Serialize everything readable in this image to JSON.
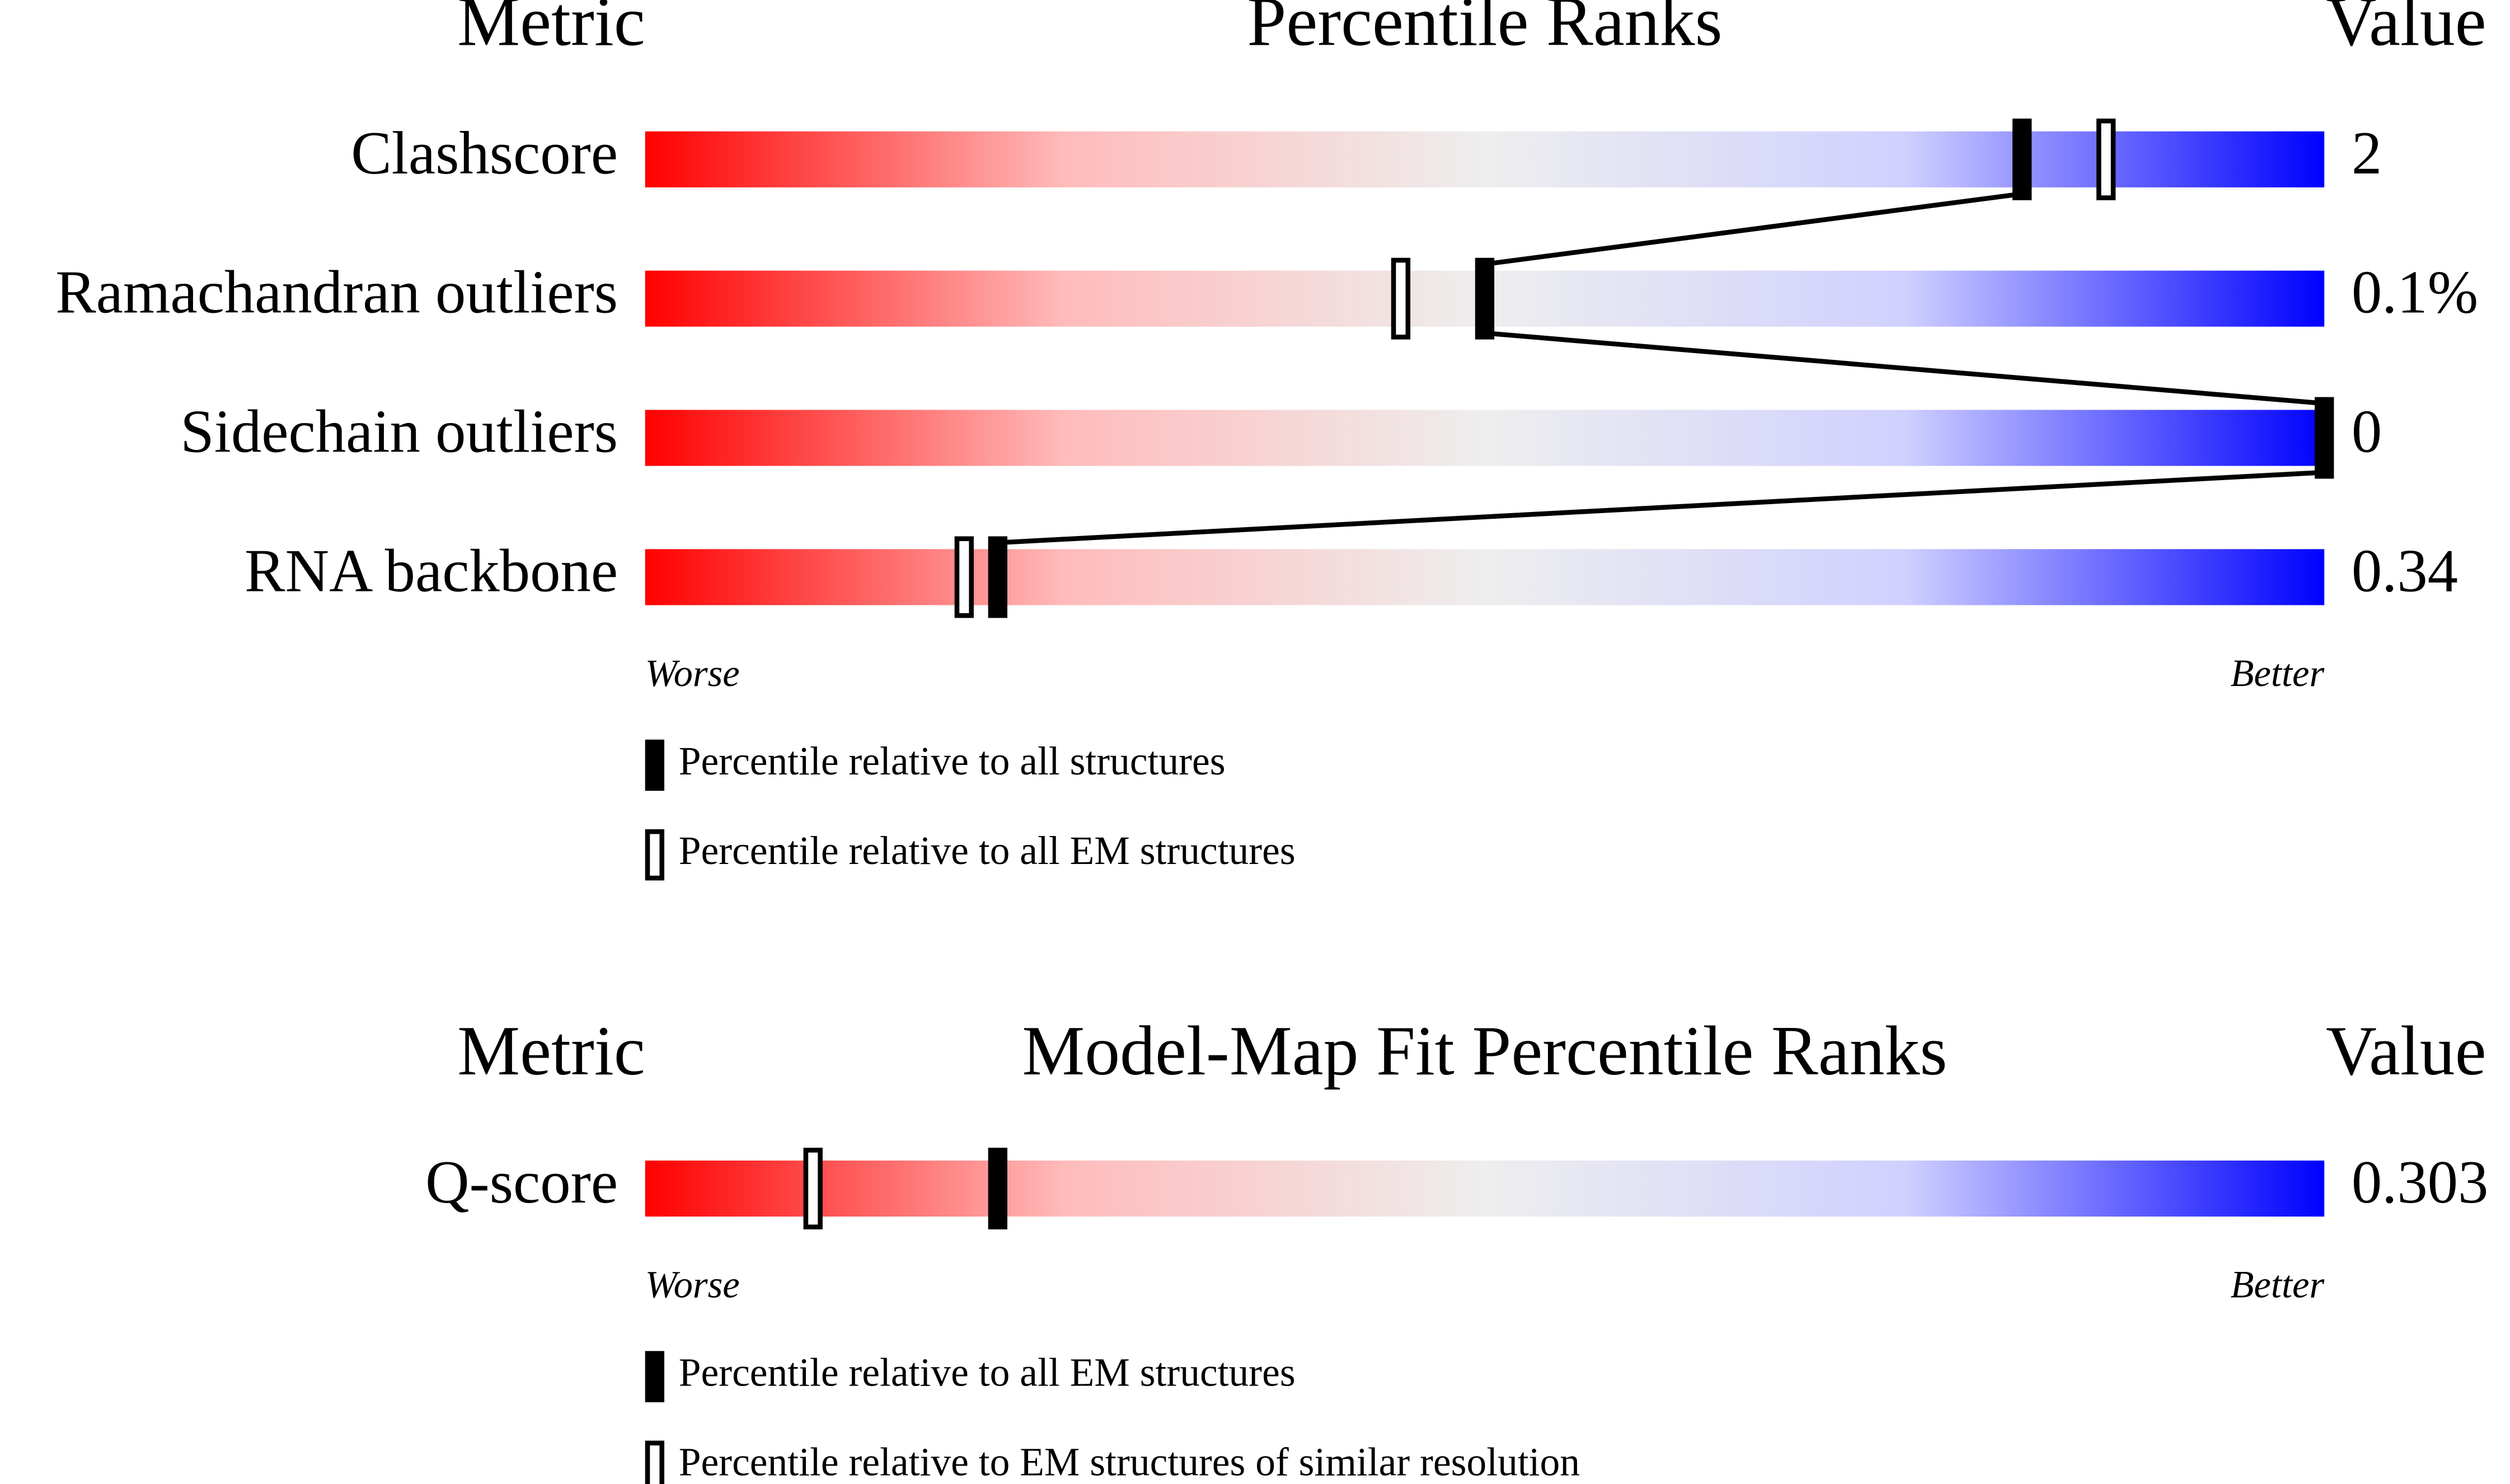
{
  "chart_data": [
    {
      "type": "slider",
      "metric_header": "Metric",
      "title": "Percentile Ranks",
      "value_header": "Value",
      "categories": [
        "Clashscore",
        "Ramachandran outliers",
        "Sidechain outliers",
        "RNA backbone"
      ],
      "metric_values": [
        "2",
        "0.1%",
        "0",
        "0.34"
      ],
      "xlim": [
        0,
        100
      ],
      "low_label": "Worse",
      "high_label": "Better",
      "connect": true,
      "series": [
        {
          "name": "Percentile relative to all structures",
          "style": "filled",
          "color": "#000000",
          "values": [
            82,
            50,
            100,
            21
          ]
        },
        {
          "name": "Percentile relative to all EM structures",
          "style": "open",
          "color": "#000000",
          "values": [
            87,
            45,
            null,
            19
          ]
        }
      ]
    },
    {
      "type": "slider",
      "metric_header": "Metric",
      "title": "Model-Map Fit Percentile Ranks",
      "value_header": "Value",
      "categories": [
        "Q-score"
      ],
      "metric_values": [
        "0.303"
      ],
      "xlim": [
        0,
        100
      ],
      "low_label": "Worse",
      "high_label": "Better",
      "connect": false,
      "series": [
        {
          "name": "Percentile relative to all EM structures",
          "style": "filled",
          "color": "#000000",
          "values": [
            21
          ]
        },
        {
          "name": "Percentile relative to EM structures of similar resolution",
          "style": "open",
          "color": "#000000",
          "values": [
            10
          ]
        }
      ]
    }
  ]
}
